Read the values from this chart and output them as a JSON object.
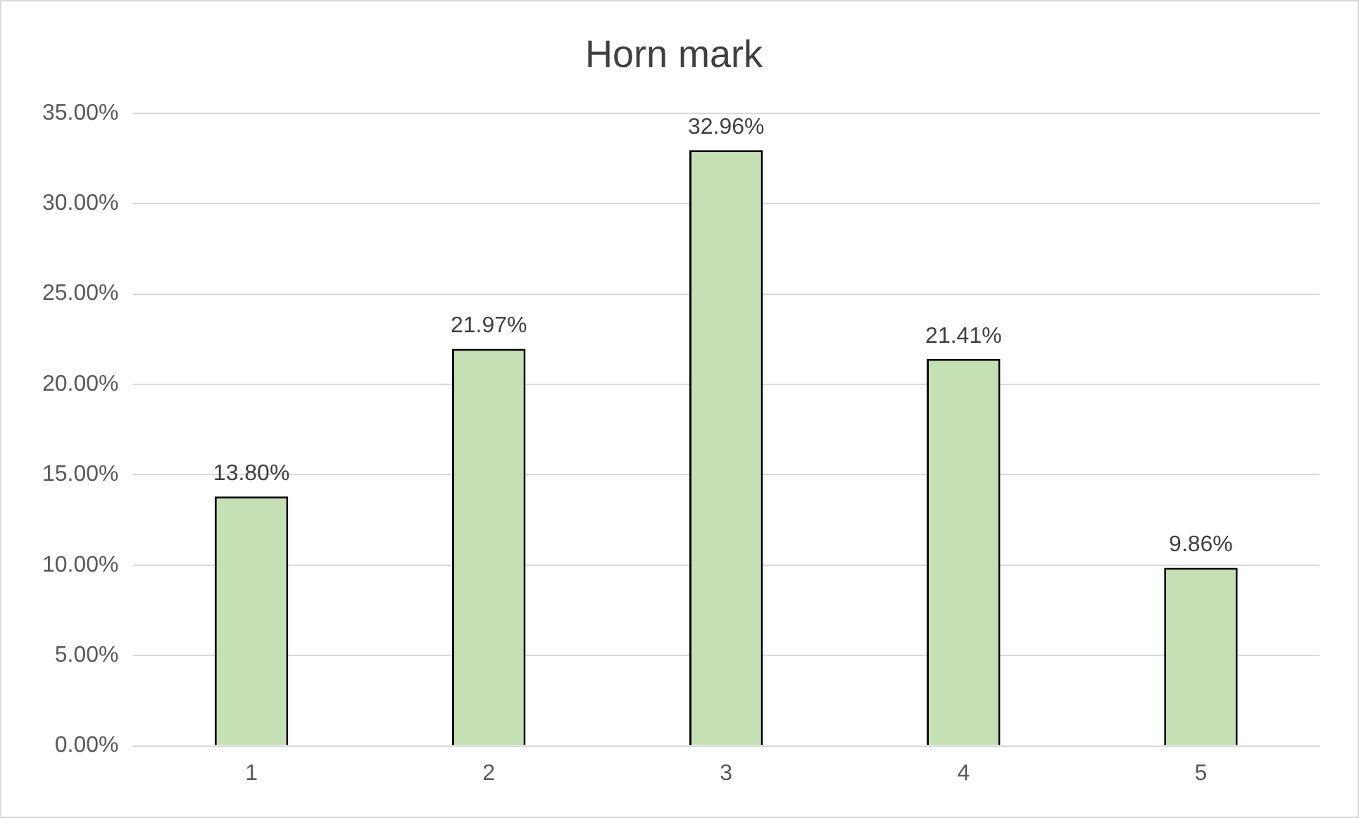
{
  "chart_data": {
    "type": "bar",
    "title": "Horn mark",
    "categories": [
      "1",
      "2",
      "3",
      "4",
      "5"
    ],
    "values": [
      13.8,
      21.97,
      32.96,
      21.41,
      9.86
    ],
    "value_labels": [
      "13.80%",
      "21.97%",
      "32.96%",
      "21.41%",
      "9.86%"
    ],
    "color": "#c5e0b4",
    "ylim": [
      0,
      35
    ],
    "yticks": [
      {
        "value": 0,
        "label": "0.00%"
      },
      {
        "value": 5,
        "label": "5.00%"
      },
      {
        "value": 10,
        "label": "10.00%"
      },
      {
        "value": 15,
        "label": "15.00%"
      },
      {
        "value": 20,
        "label": "20.00%"
      },
      {
        "value": 25,
        "label": "25.00%"
      },
      {
        "value": 30,
        "label": "30.00%"
      },
      {
        "value": 35,
        "label": "35.00%"
      }
    ],
    "grid": "y"
  }
}
